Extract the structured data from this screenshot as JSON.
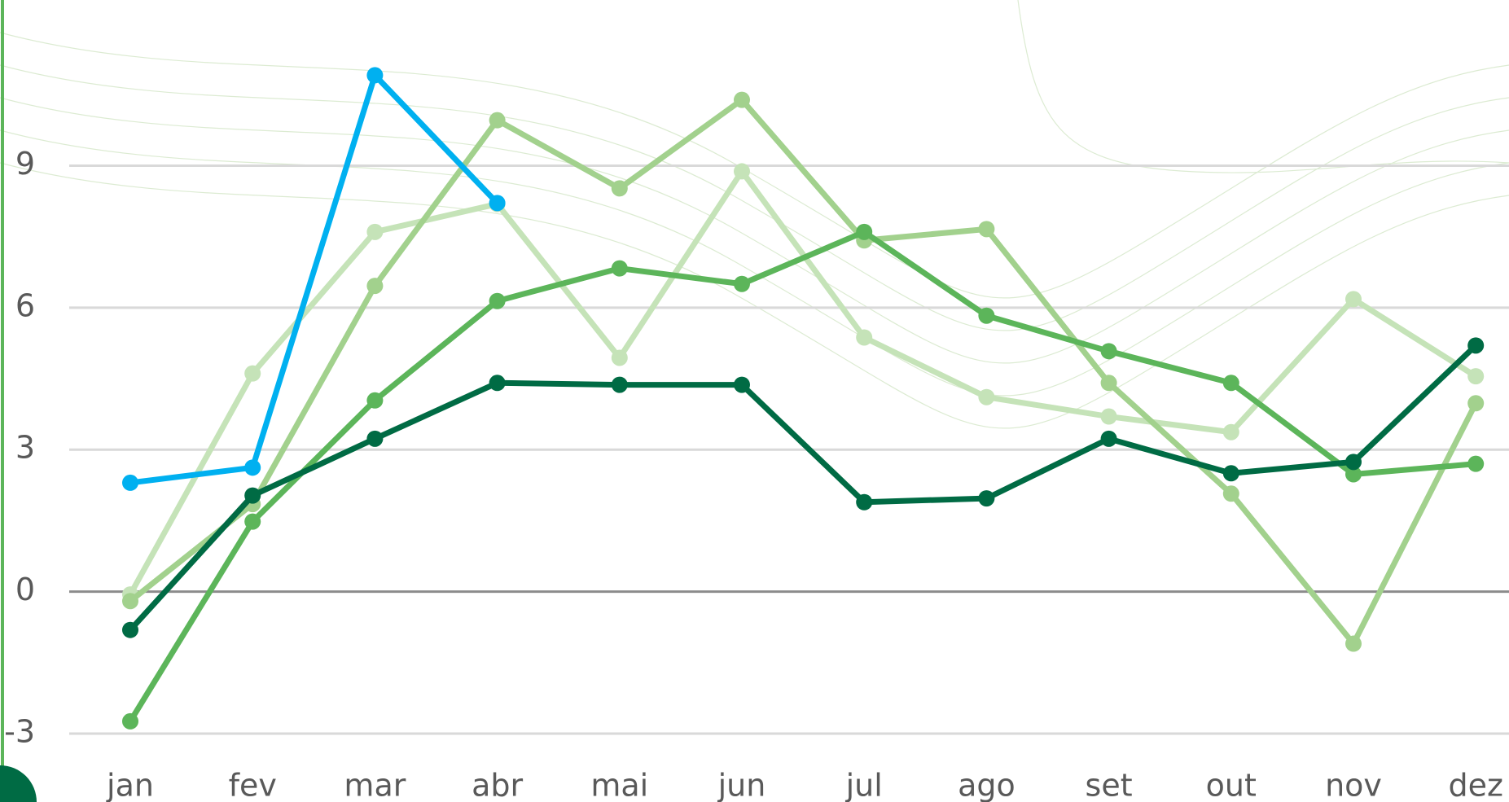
{
  "chart_data": {
    "type": "line",
    "categories": [
      "jan",
      "fev",
      "mar",
      "abr",
      "mai",
      "jun",
      "jul",
      "ago",
      "set",
      "out",
      "nov",
      "dez"
    ],
    "series": [
      {
        "color": "#c5e3b8",
        "values": [
          -0.06,
          4.61,
          7.6,
          8.19,
          4.94,
          8.88,
          5.37,
          4.11,
          3.7,
          3.37,
          6.18,
          4.55
        ]
      },
      {
        "color": "#a2d18d",
        "values": [
          -0.2,
          1.85,
          6.46,
          9.96,
          8.52,
          10.39,
          7.42,
          7.66,
          4.41,
          2.07,
          -1.1,
          3.98
        ]
      },
      {
        "color": "#5cb55a",
        "values": [
          -2.74,
          1.48,
          4.04,
          6.14,
          6.83,
          6.5,
          7.6,
          5.83,
          5.08,
          4.41,
          2.48,
          2.7
        ]
      },
      {
        "color": "#006b44",
        "values": [
          -0.81,
          2.03,
          3.23,
          4.41,
          4.37,
          4.37,
          1.89,
          1.97,
          3.23,
          2.5,
          2.74,
          5.2
        ]
      },
      {
        "color": "#00b0f0",
        "values": [
          2.3,
          2.62,
          10.91,
          8.21,
          null,
          null,
          null,
          null,
          null,
          null,
          null,
          null
        ]
      }
    ],
    "ylim": [
      -3,
      12.5
    ],
    "yticks": [
      -3,
      0,
      3,
      6,
      9
    ],
    "grid": true
  }
}
